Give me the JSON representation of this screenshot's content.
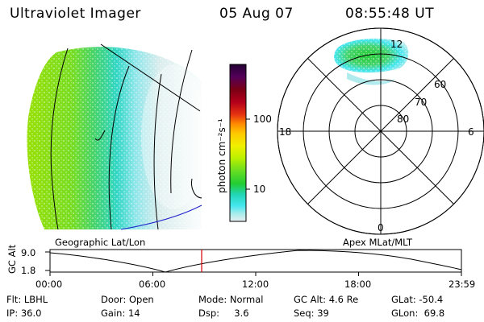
{
  "header": {
    "instrument": "Ultraviolet Imager",
    "date": "05 Aug 07",
    "time": "08:55:48 UT"
  },
  "colorbar": {
    "unit_label": "photon cm⁻²s⁻¹",
    "ticks": [
      {
        "value": 100,
        "label": "100"
      },
      {
        "value": 10,
        "label": "10"
      }
    ],
    "colors": [
      "#220033",
      "#55005a",
      "#7a0014",
      "#b3001a",
      "#e53311",
      "#ff8c00",
      "#ffc800",
      "#f0f000",
      "#b8f000",
      "#66dd22",
      "#22cc33",
      "#22d6b8",
      "#44e6ee",
      "#a6ecec",
      "#e8eeee"
    ]
  },
  "polar_plot": {
    "mlt_labels": {
      "top": "12",
      "left": "18",
      "right": "6",
      "bottom": "0"
    },
    "lat_labels": [
      {
        "value": "60"
      },
      {
        "value": "70"
      },
      {
        "value": "80"
      }
    ]
  },
  "panel_labels": {
    "left": "Geographic Lat/Lon",
    "right": "Apex MLat/MLT"
  },
  "altitude_plot": {
    "axis_label": "GC Alt",
    "y_ticks": [
      "9.0",
      "1.8"
    ],
    "x_ticks": [
      "00:00",
      "06:00",
      "12:00",
      "18:00",
      "23:59"
    ],
    "current_time_marker_color": "#dd0000"
  },
  "status": {
    "row1": [
      {
        "key": "Flt: LBHL"
      },
      {
        "key": "Door: Open"
      },
      {
        "key": "Mode: Normal"
      },
      {
        "key": "GC Alt: 4.6 Re"
      },
      {
        "key": "GLat: -50.4"
      }
    ],
    "row2": [
      {
        "key": "IP: 36.0"
      },
      {
        "key": "Gain: 14"
      },
      {
        "key": "Dsp:     3.6"
      },
      {
        "key": "Seq: 39"
      },
      {
        "key": "GLon:  69.8"
      }
    ]
  }
}
